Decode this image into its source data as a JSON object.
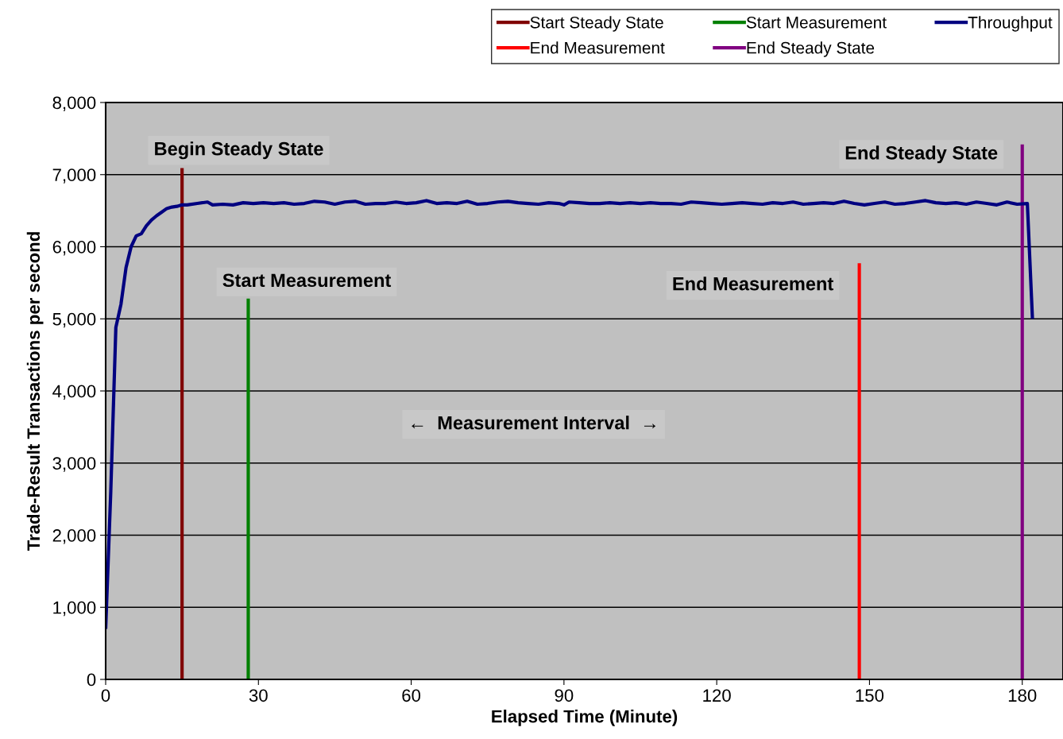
{
  "chart_data": {
    "type": "line",
    "xlabel": "Elapsed Time (Minute)",
    "ylabel": "Trade-Result Transactions per second",
    "xlim": [
      0,
      188
    ],
    "xticks": [
      0,
      30,
      60,
      90,
      120,
      150,
      180
    ],
    "ylim": [
      0,
      8000
    ],
    "yticks": [
      {
        "value": 0,
        "label": "0"
      },
      {
        "value": 1000,
        "label": "1,000"
      },
      {
        "value": 2000,
        "label": "2,000"
      },
      {
        "value": 3000,
        "label": "3,000"
      },
      {
        "value": 4000,
        "label": "4,000"
      },
      {
        "value": 5000,
        "label": "5,000"
      },
      {
        "value": 6000,
        "label": "6,000"
      },
      {
        "value": 7000,
        "label": "7,000"
      },
      {
        "value": 8000,
        "label": "8,000"
      }
    ],
    "grid": "y",
    "legend": "top",
    "marker": "none",
    "line_style": "solid",
    "series": [
      {
        "name": "Start Steady State",
        "color": "#800000",
        "x": [
          15,
          15
        ],
        "values": [
          0,
          7090
        ]
      },
      {
        "name": "End Measurement",
        "color": "#ff0000",
        "x": [
          148,
          148
        ],
        "values": [
          0,
          5770
        ]
      },
      {
        "name": "Start Measurement",
        "color": "#008000",
        "x": [
          28,
          28
        ],
        "values": [
          0,
          5280
        ]
      },
      {
        "name": "End Steady State",
        "color": "#800080",
        "x": [
          180,
          180
        ],
        "values": [
          0,
          7420
        ]
      },
      {
        "name": "Throughput",
        "color": "#000080",
        "x": [
          0,
          1,
          2,
          3,
          4,
          5,
          6,
          7,
          8,
          9,
          10,
          11,
          12,
          13,
          14,
          15,
          16,
          18,
          20,
          21,
          23,
          25,
          27,
          29,
          31,
          33,
          35,
          37,
          39,
          41,
          43,
          45,
          47,
          49,
          51,
          53,
          55,
          57,
          59,
          61,
          63,
          65,
          67,
          69,
          71,
          73,
          75,
          77,
          79,
          81,
          83,
          85,
          87,
          89,
          90,
          91,
          93,
          95,
          97,
          99,
          101,
          103,
          105,
          107,
          109,
          111,
          113,
          115,
          117,
          119,
          121,
          123,
          125,
          127,
          129,
          131,
          133,
          135,
          137,
          139,
          141,
          143,
          145,
          147,
          149,
          151,
          153,
          155,
          157,
          159,
          161,
          163,
          165,
          167,
          169,
          171,
          173,
          175,
          177,
          179,
          181,
          182
        ],
        "values": [
          700,
          2600,
          4880,
          5200,
          5710,
          6000,
          6150,
          6180,
          6290,
          6370,
          6430,
          6480,
          6530,
          6550,
          6560,
          6580,
          6580,
          6600,
          6620,
          6580,
          6590,
          6580,
          6610,
          6600,
          6610,
          6600,
          6610,
          6590,
          6600,
          6630,
          6620,
          6590,
          6620,
          6630,
          6590,
          6600,
          6600,
          6620,
          6600,
          6610,
          6640,
          6600,
          6610,
          6600,
          6630,
          6590,
          6600,
          6620,
          6630,
          6610,
          6600,
          6590,
          6610,
          6600,
          6580,
          6620,
          6610,
          6600,
          6600,
          6610,
          6600,
          6610,
          6600,
          6610,
          6600,
          6600,
          6590,
          6620,
          6610,
          6600,
          6590,
          6600,
          6610,
          6600,
          6590,
          6610,
          6600,
          6620,
          6590,
          6600,
          6610,
          6600,
          6630,
          6600,
          6580,
          6600,
          6620,
          6590,
          6600,
          6620,
          6640,
          6610,
          6600,
          6610,
          6590,
          6620,
          6600,
          6580,
          6620,
          6590,
          6600,
          5000
        ]
      }
    ],
    "annotations": [
      "Begin Steady State",
      "Start Measurement",
      "←  Measurement Interval  →",
      "End Measurement",
      "End Steady State"
    ]
  }
}
